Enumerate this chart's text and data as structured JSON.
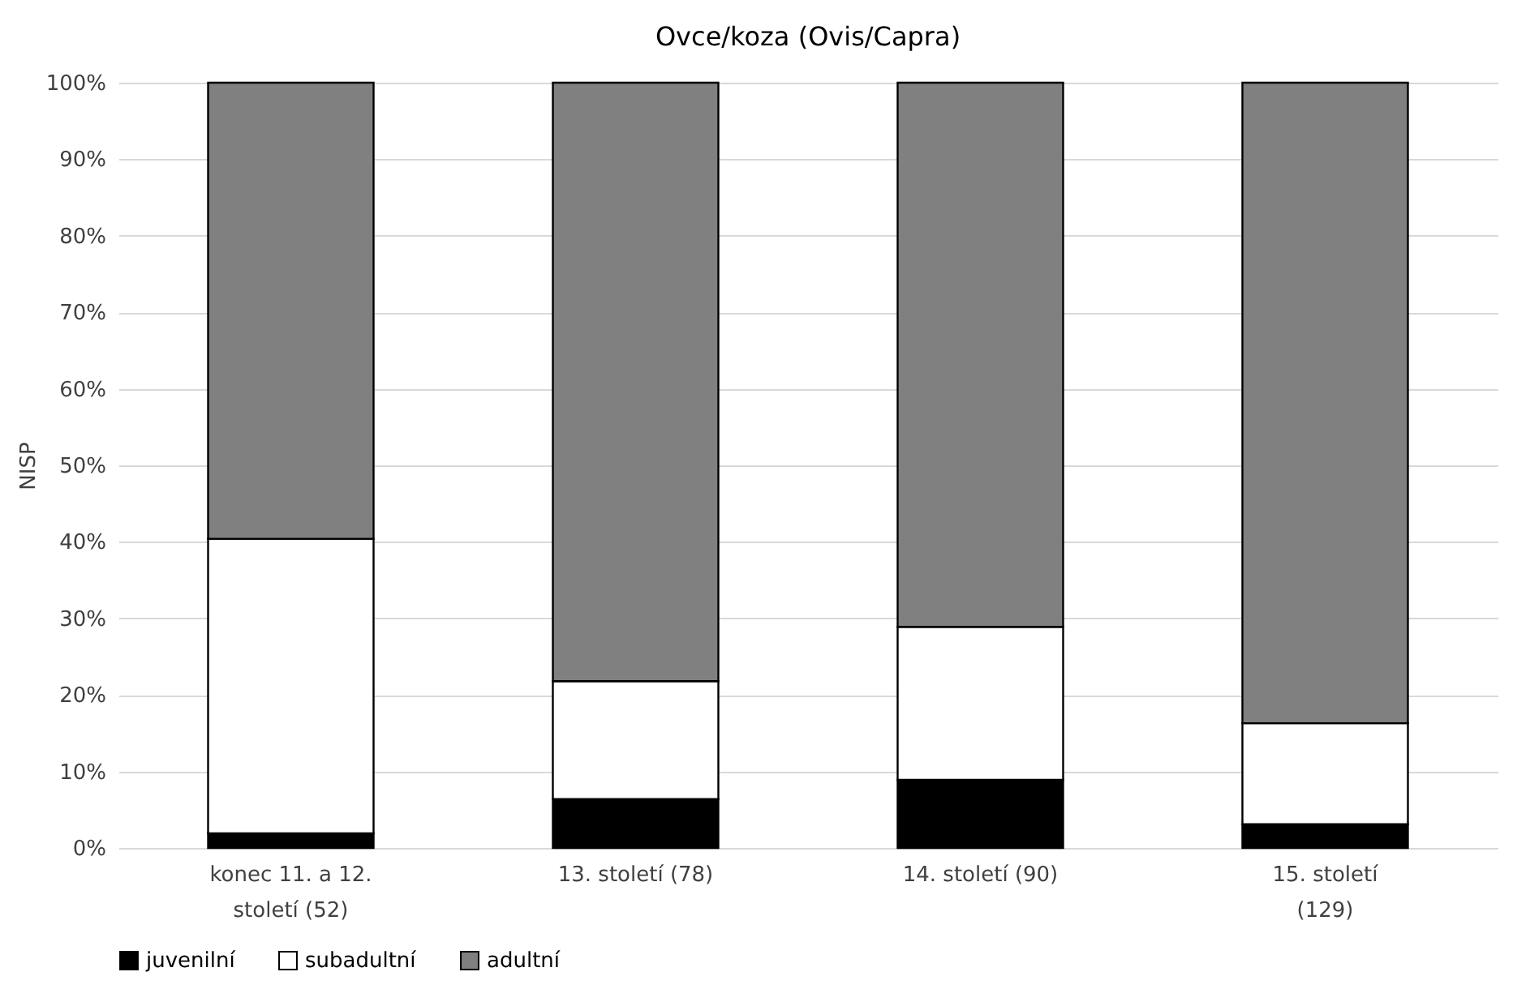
{
  "chart_data": {
    "type": "bar",
    "title": "Ovce/koza (Ovis/Capra)",
    "ylabel": "NISP",
    "stacked": true,
    "categories": [
      "konec 11. a 12. století (52)",
      "13. století (78)",
      "14. století (90)",
      "15. století (129)"
    ],
    "series": [
      {
        "name": "juvenilní",
        "color": "#000000",
        "values": [
          1.9,
          6.4,
          8.9,
          3.1
        ]
      },
      {
        "name": "subadultní",
        "color": "#ffffff",
        "values": [
          38.5,
          15.4,
          20.0,
          13.2
        ]
      },
      {
        "name": "adultní",
        "color": "#808080",
        "values": [
          59.6,
          78.2,
          71.1,
          83.7
        ]
      }
    ],
    "ylim": [
      0,
      100
    ],
    "yticks": [
      {
        "value": 0,
        "label": "0%"
      },
      {
        "value": 10,
        "label": "10%"
      },
      {
        "value": 20,
        "label": "20%"
      },
      {
        "value": 30,
        "label": "30%"
      },
      {
        "value": 40,
        "label": "40%"
      },
      {
        "value": 50,
        "label": "50%"
      },
      {
        "value": 60,
        "label": "60%"
      },
      {
        "value": 70,
        "label": "70%"
      },
      {
        "value": 80,
        "label": "80%"
      },
      {
        "value": 90,
        "label": "90%"
      },
      {
        "value": 100,
        "label": "100%"
      }
    ],
    "grid": "y",
    "legend": "bottom"
  }
}
